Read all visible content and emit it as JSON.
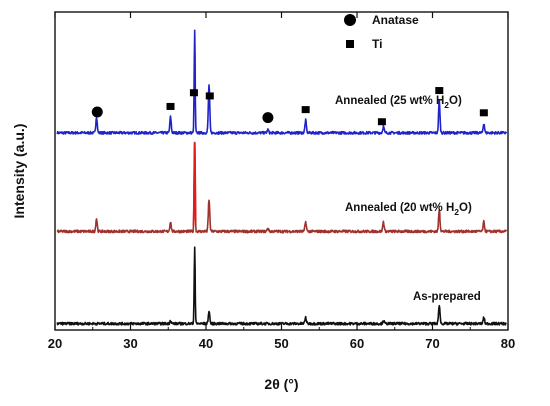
{
  "chart_data": {
    "type": "line",
    "xlabel": "2θ (°)",
    "ylabel": "Intensity (a.u.)",
    "xlim": [
      20,
      80
    ],
    "x_ticks": [
      20,
      30,
      40,
      50,
      60,
      70,
      80
    ],
    "y_ticks_shown": false,
    "grid": false,
    "legend_position": "top-center",
    "legend": [
      {
        "label": "Anatase",
        "marker": "circle"
      },
      {
        "label": "Ti",
        "marker": "square"
      }
    ],
    "series": [
      {
        "label_parts": [
          "Annealed  (25 wt% H",
          "2",
          "O)"
        ],
        "color": "#1f23c8",
        "baseline": 0.62,
        "peaks": [
          {
            "x": 25.5,
            "height": 0.05
          },
          {
            "x": 35.3,
            "height": 0.05
          },
          {
            "x": 38.5,
            "height": 0.32
          },
          {
            "x": 40.4,
            "height": 0.15
          },
          {
            "x": 48.2,
            "height": 0.01
          },
          {
            "x": 53.2,
            "height": 0.04
          },
          {
            "x": 63.5,
            "height": 0.02
          },
          {
            "x": 70.9,
            "height": 0.1
          },
          {
            "x": 76.8,
            "height": 0.03
          }
        ],
        "markers": [
          {
            "x": 25.6,
            "type": "circle"
          },
          {
            "x": 35.3,
            "type": "square"
          },
          {
            "x": 38.4,
            "type": "square"
          },
          {
            "x": 40.5,
            "type": "square"
          },
          {
            "x": 48.2,
            "type": "circle"
          },
          {
            "x": 53.2,
            "type": "square"
          },
          {
            "x": 63.3,
            "type": "square"
          },
          {
            "x": 70.9,
            "type": "square"
          },
          {
            "x": 76.8,
            "type": "square"
          }
        ]
      },
      {
        "label_parts": [
          "Annealed  (20 wt% H",
          "2",
          "O)"
        ],
        "color": "#a0322d",
        "peak_highlight_color": "#e21b1b",
        "baseline": 0.31,
        "peaks": [
          {
            "x": 25.5,
            "height": 0.04
          },
          {
            "x": 35.3,
            "height": 0.03
          },
          {
            "x": 38.5,
            "height": 0.28
          },
          {
            "x": 40.4,
            "height": 0.1
          },
          {
            "x": 48.2,
            "height": 0.01
          },
          {
            "x": 53.2,
            "height": 0.03
          },
          {
            "x": 63.5,
            "height": 0.03
          },
          {
            "x": 70.9,
            "height": 0.07
          },
          {
            "x": 76.8,
            "height": 0.03
          }
        ]
      },
      {
        "label_parts": [
          "As-prepared"
        ],
        "color": "#111111",
        "baseline": 0.02,
        "peaks": [
          {
            "x": 35.3,
            "height": 0.01
          },
          {
            "x": 38.5,
            "height": 0.24
          },
          {
            "x": 40.4,
            "height": 0.04
          },
          {
            "x": 53.2,
            "height": 0.02
          },
          {
            "x": 63.5,
            "height": 0.01
          },
          {
            "x": 70.9,
            "height": 0.06
          },
          {
            "x": 76.8,
            "height": 0.02
          }
        ]
      }
    ]
  }
}
